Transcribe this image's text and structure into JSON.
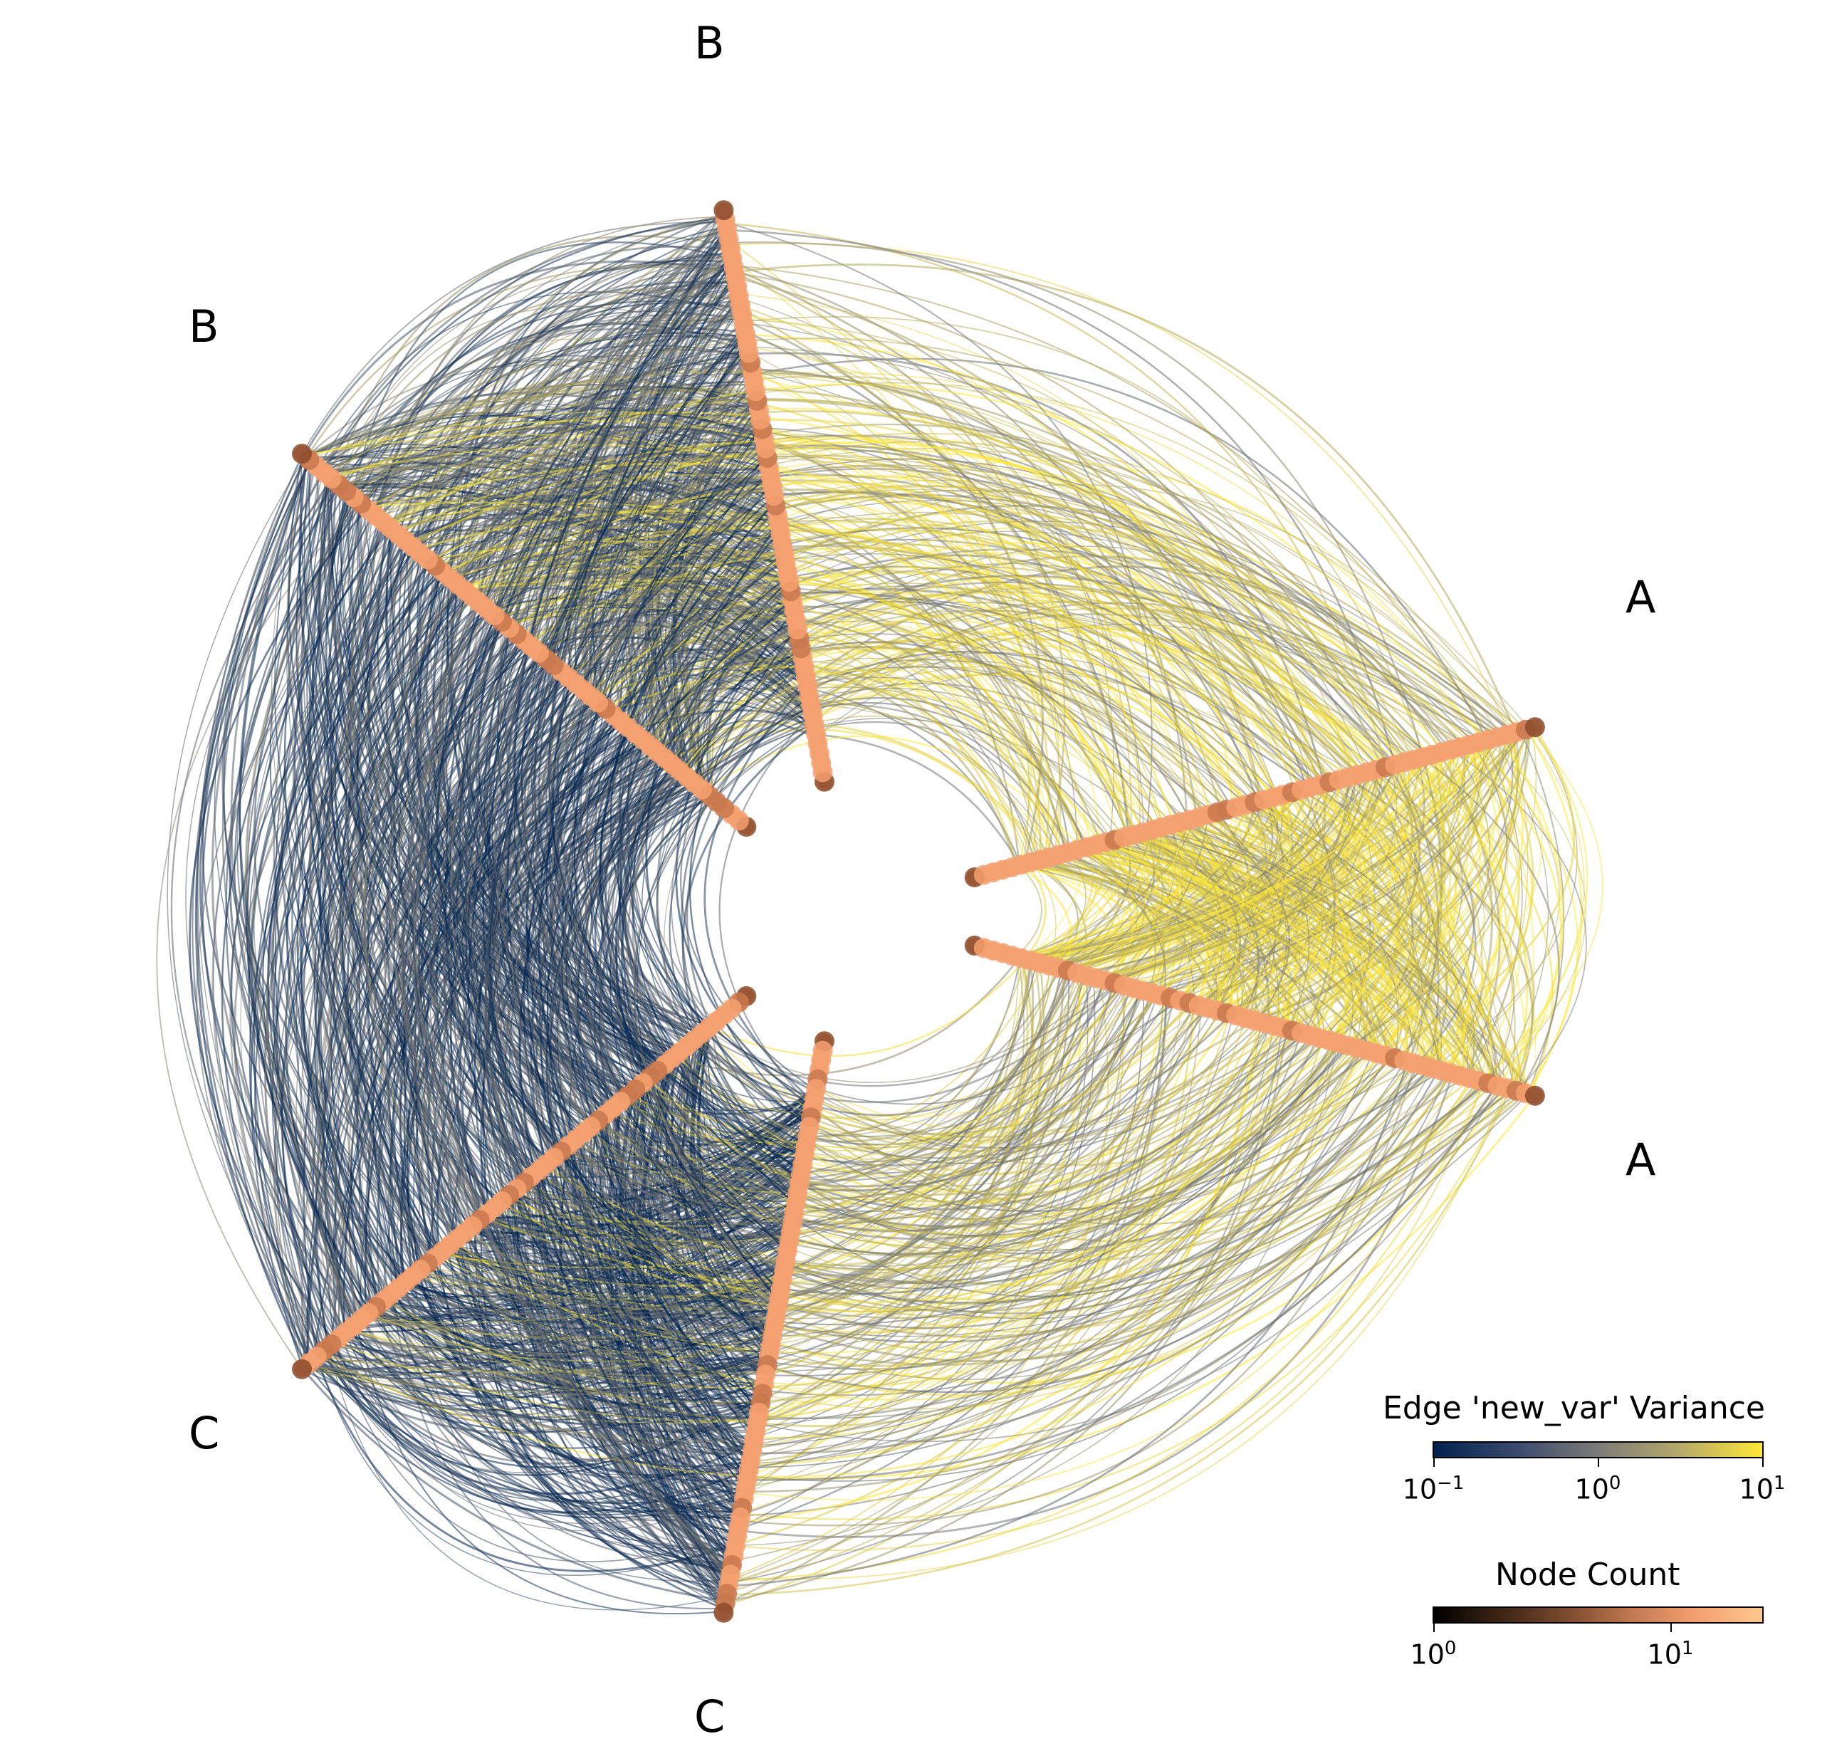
{
  "chart_data": {
    "type": "hive-plot",
    "axes": [
      {
        "name": "A",
        "angle_deg": 15
      },
      {
        "name": "A",
        "angle_deg": -15
      },
      {
        "name": "B",
        "angle_deg": 100
      },
      {
        "name": "B",
        "angle_deg": 140
      },
      {
        "name": "C",
        "angle_deg": 220
      },
      {
        "name": "C",
        "angle_deg": 260
      }
    ],
    "edge_colorbar": {
      "title": "Edge 'new_var' Variance",
      "scale": "log",
      "range": [
        0.1,
        10
      ],
      "ticks": [
        {
          "base": "10",
          "exp": "−1"
        },
        {
          "base": "10",
          "exp": "0"
        },
        {
          "base": "10",
          "exp": "1"
        }
      ],
      "colors": [
        "#00224e",
        "#7c7b78",
        "#fee838"
      ]
    },
    "node_colorbar": {
      "title": "Node Count",
      "scale": "log",
      "range": [
        1,
        25
      ],
      "ticks": [
        {
          "base": "10",
          "exp": "0"
        },
        {
          "base": "10",
          "exp": "1"
        }
      ],
      "colors": [
        "#000000",
        "#a0603c",
        "#ffc88c"
      ]
    },
    "node_color": "#f4a070",
    "edge_density": {
      "A-A": "high",
      "A-B": "high",
      "A-C": "high",
      "B-B": "high",
      "B-C": "high",
      "C-C": "high"
    }
  }
}
